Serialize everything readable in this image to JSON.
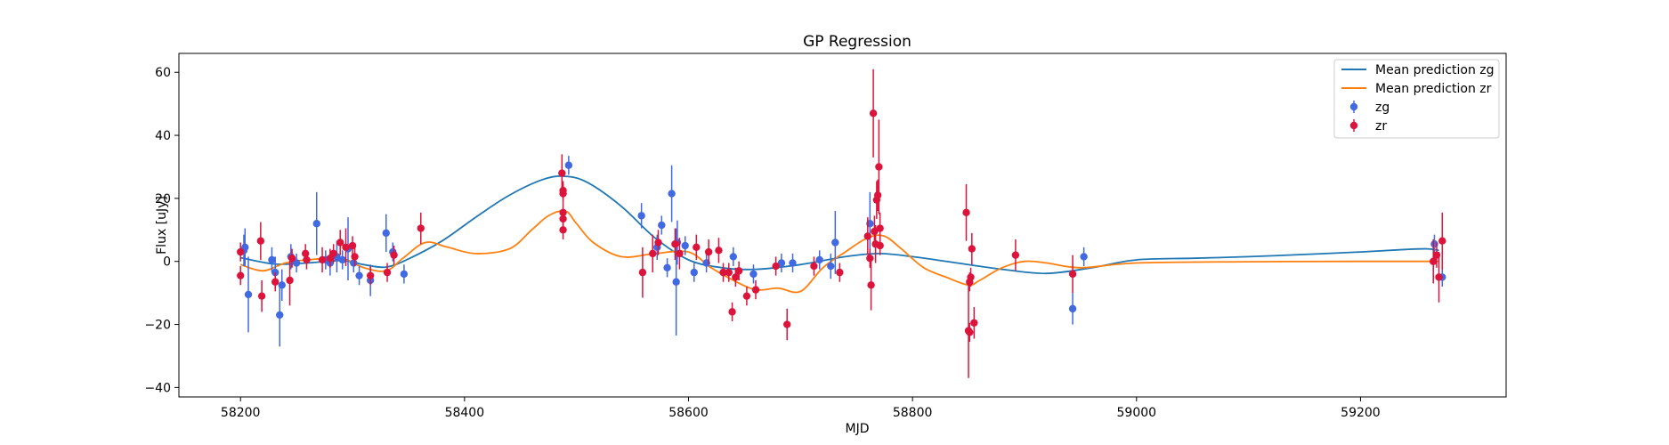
{
  "chart_data": {
    "type": "scatter",
    "title": "GP Regression",
    "xlabel": "MJD",
    "ylabel": "Flux [uJy]",
    "xlim": [
      58145,
      59330
    ],
    "ylim": [
      -43,
      66
    ],
    "xticks": [
      58200,
      58400,
      58600,
      58800,
      59000,
      59200
    ],
    "yticks": [
      -40,
      -20,
      0,
      20,
      40,
      60
    ],
    "grid": false,
    "legend_position": "top-right",
    "legend": [
      "Mean prediction zg",
      "Mean prediction zr",
      "zg",
      "zr"
    ],
    "lines": [
      {
        "name": "Mean prediction zg",
        "color": "#1f77b4",
        "x": [
          58200,
          58230,
          58260,
          58290,
          58310,
          58330,
          58350,
          58380,
          58410,
          58440,
          58470,
          58490,
          58510,
          58540,
          58570,
          58600,
          58630,
          58660,
          58700,
          58740,
          58770,
          58800,
          58840,
          58880,
          58920,
          58960,
          59000,
          59050,
          59100,
          59150,
          59200,
          59240,
          59260,
          59270
        ],
        "y": [
          1.2,
          -0.8,
          -0.5,
          0.3,
          -1.0,
          -1.8,
          0.8,
          6.5,
          14.0,
          21.0,
          26.0,
          27.0,
          25.0,
          17.5,
          7.5,
          0.5,
          -2.0,
          -2.5,
          -1.0,
          1.5,
          2.5,
          1.5,
          -0.5,
          -2.5,
          -3.8,
          -2.0,
          0.5,
          1.0,
          1.5,
          2.2,
          3.0,
          3.8,
          4.0,
          3.5
        ]
      },
      {
        "name": "Mean prediction zr",
        "color": "#ff7f0e",
        "x": [
          58200,
          58220,
          58240,
          58260,
          58290,
          58310,
          58330,
          58345,
          58365,
          58385,
          58410,
          58440,
          58460,
          58475,
          58490,
          58500,
          58515,
          58540,
          58570,
          58600,
          58620,
          58640,
          58660,
          58680,
          58700,
          58720,
          58740,
          58760,
          58775,
          58790,
          58810,
          58830,
          58850,
          58860,
          58880,
          58900,
          58920,
          58950,
          59000,
          59100,
          59200,
          59270
        ],
        "y": [
          -1.0,
          -3.0,
          -0.5,
          0.5,
          1.0,
          -2.0,
          -3.0,
          1.0,
          6.0,
          4.5,
          2.5,
          4.0,
          10.0,
          14.5,
          16.0,
          12.0,
          6.0,
          1.5,
          2.5,
          3.0,
          -2.0,
          -6.0,
          -9.0,
          -8.5,
          -9.5,
          -2.0,
          3.0,
          7.5,
          8.0,
          4.0,
          -2.0,
          -5.0,
          -7.5,
          -6.0,
          -2.0,
          0.0,
          -0.5,
          -2.0,
          -0.5,
          -0.1,
          0.0,
          0.0
        ]
      }
    ],
    "series": [
      {
        "name": "zg",
        "color": "#4169e1",
        "points": [
          {
            "x": 58203,
            "y": 3.5,
            "err": 5
          },
          {
            "x": 58204,
            "y": 4.5,
            "err": 6
          },
          {
            "x": 58207,
            "y": -10.5,
            "err": 12
          },
          {
            "x": 58228,
            "y": 0.5,
            "err": 4
          },
          {
            "x": 58231,
            "y": -3.5,
            "err": 5
          },
          {
            "x": 58235,
            "y": -17,
            "err": 10
          },
          {
            "x": 58237,
            "y": -7.5,
            "err": 5
          },
          {
            "x": 58245,
            "y": 1.5,
            "err": 4
          },
          {
            "x": 58250,
            "y": -0.5,
            "err": 3
          },
          {
            "x": 58268,
            "y": 12,
            "err": 10
          },
          {
            "x": 58276,
            "y": 0.5,
            "err": 3
          },
          {
            "x": 58280,
            "y": -0.5,
            "err": 4
          },
          {
            "x": 58286,
            "y": 1.5,
            "err": 5
          },
          {
            "x": 58291,
            "y": 0.5,
            "err": 3
          },
          {
            "x": 58296,
            "y": 4,
            "err": 10
          },
          {
            "x": 58301,
            "y": -0.5,
            "err": 3
          },
          {
            "x": 58306,
            "y": -4.5,
            "err": 3
          },
          {
            "x": 58316,
            "y": -6,
            "err": 5
          },
          {
            "x": 58330,
            "y": 9,
            "err": 6
          },
          {
            "x": 58336,
            "y": 3,
            "err": 3
          },
          {
            "x": 58346,
            "y": -4,
            "err": 3
          },
          {
            "x": 58493,
            "y": 30.5,
            "err": 3
          },
          {
            "x": 58558,
            "y": 14.5,
            "err": 4
          },
          {
            "x": 58572,
            "y": 4.5,
            "err": 4
          },
          {
            "x": 58576,
            "y": 11.5,
            "err": 3
          },
          {
            "x": 58581,
            "y": -2,
            "err": 3
          },
          {
            "x": 58585,
            "y": 21.5,
            "err": 9
          },
          {
            "x": 58589,
            "y": -6.5,
            "err": 17
          },
          {
            "x": 58590,
            "y": 6,
            "err": 7
          },
          {
            "x": 58597,
            "y": 5,
            "err": 3
          },
          {
            "x": 58605,
            "y": -3.5,
            "err": 3
          },
          {
            "x": 58616,
            "y": -0.5,
            "err": 3
          },
          {
            "x": 58640,
            "y": 1.5,
            "err": 3
          },
          {
            "x": 58658,
            "y": -4,
            "err": 3
          },
          {
            "x": 58683,
            "y": -0.5,
            "err": 3
          },
          {
            "x": 58693,
            "y": -0.5,
            "err": 3
          },
          {
            "x": 58717,
            "y": 0.5,
            "err": 3
          },
          {
            "x": 58727,
            "y": -1.5,
            "err": 4
          },
          {
            "x": 58731,
            "y": 6,
            "err": 10
          },
          {
            "x": 58762,
            "y": 12,
            "err": 10
          },
          {
            "x": 58943,
            "y": -15,
            "err": 5
          },
          {
            "x": 58953,
            "y": 1.5,
            "err": 3
          },
          {
            "x": 59266,
            "y": 5.5,
            "err": 3
          },
          {
            "x": 59273,
            "y": -5,
            "err": 3
          }
        ]
      },
      {
        "name": "zr",
        "color": "#dc143c",
        "points": [
          {
            "x": 58200,
            "y": 3,
            "err": 3
          },
          {
            "x": 58200,
            "y": -4.5,
            "err": 3
          },
          {
            "x": 58218,
            "y": 6.5,
            "err": 6
          },
          {
            "x": 58219,
            "y": -11,
            "err": 5
          },
          {
            "x": 58231,
            "y": -6.5,
            "err": 3
          },
          {
            "x": 58244,
            "y": -6,
            "err": 8
          },
          {
            "x": 58246,
            "y": 1,
            "err": 3
          },
          {
            "x": 58258,
            "y": 2.5,
            "err": 3
          },
          {
            "x": 58259,
            "y": 0.5,
            "err": 3
          },
          {
            "x": 58273,
            "y": 0.5,
            "err": 4
          },
          {
            "x": 58280,
            "y": 1,
            "err": 3
          },
          {
            "x": 58283,
            "y": 2.5,
            "err": 3
          },
          {
            "x": 58289,
            "y": 6,
            "err": 4
          },
          {
            "x": 58294,
            "y": 4.5,
            "err": 6
          },
          {
            "x": 58300,
            "y": 5,
            "err": 3
          },
          {
            "x": 58302,
            "y": 1.5,
            "err": 3
          },
          {
            "x": 58316,
            "y": -4.5,
            "err": 3
          },
          {
            "x": 58331,
            "y": -3.5,
            "err": 3
          },
          {
            "x": 58337,
            "y": 2,
            "err": 3
          },
          {
            "x": 58361,
            "y": 10.5,
            "err": 5
          },
          {
            "x": 58487,
            "y": 28,
            "err": 6
          },
          {
            "x": 58488,
            "y": 22.5,
            "err": 3
          },
          {
            "x": 58488,
            "y": 21.5,
            "err": 3
          },
          {
            "x": 58488,
            "y": 15.5,
            "err": 3
          },
          {
            "x": 58488,
            "y": 13.5,
            "err": 3
          },
          {
            "x": 58488,
            "y": 10,
            "err": 3
          },
          {
            "x": 58559,
            "y": -3.5,
            "err": 8
          },
          {
            "x": 58568,
            "y": 2.5,
            "err": 6
          },
          {
            "x": 58573,
            "y": 6,
            "err": 4
          },
          {
            "x": 58588,
            "y": 5.5,
            "err": 5
          },
          {
            "x": 58592,
            "y": 2.5,
            "err": 5
          },
          {
            "x": 58607,
            "y": 4.5,
            "err": 4
          },
          {
            "x": 58618,
            "y": 3,
            "err": 4
          },
          {
            "x": 58627,
            "y": 3.5,
            "err": 4
          },
          {
            "x": 58631,
            "y": -3.5,
            "err": 3
          },
          {
            "x": 58636,
            "y": -3.5,
            "err": 3
          },
          {
            "x": 58639,
            "y": -16,
            "err": 3
          },
          {
            "x": 58642,
            "y": -5,
            "err": 3
          },
          {
            "x": 58645,
            "y": -3,
            "err": 3
          },
          {
            "x": 58652,
            "y": -11,
            "err": 3
          },
          {
            "x": 58660,
            "y": -9,
            "err": 3
          },
          {
            "x": 58678,
            "y": -1.5,
            "err": 3
          },
          {
            "x": 58688,
            "y": -20,
            "err": 5
          },
          {
            "x": 58712,
            "y": -1.5,
            "err": 3
          },
          {
            "x": 58735,
            "y": -3.5,
            "err": 3
          },
          {
            "x": 58760,
            "y": 8,
            "err": 6
          },
          {
            "x": 58762,
            "y": 1,
            "err": 3
          },
          {
            "x": 58763,
            "y": -7.5,
            "err": 8
          },
          {
            "x": 58765,
            "y": 47,
            "err": 14
          },
          {
            "x": 58766,
            "y": 9.5,
            "err": 5
          },
          {
            "x": 58767,
            "y": 5.5,
            "err": 6
          },
          {
            "x": 58768,
            "y": 19.5,
            "err": 6
          },
          {
            "x": 58769,
            "y": 21,
            "err": 5
          },
          {
            "x": 58770,
            "y": 30,
            "err": 15
          },
          {
            "x": 58771,
            "y": 10.5,
            "err": 5
          },
          {
            "x": 58771,
            "y": 5,
            "err": 3
          },
          {
            "x": 58848,
            "y": 15.5,
            "err": 9
          },
          {
            "x": 58850,
            "y": -22,
            "err": 15
          },
          {
            "x": 58851,
            "y": -22.5,
            "err": 3
          },
          {
            "x": 58851,
            "y": -6.5,
            "err": 3
          },
          {
            "x": 58852,
            "y": -5,
            "err": 3
          },
          {
            "x": 58853,
            "y": 4,
            "err": 5
          },
          {
            "x": 58855,
            "y": -19.5,
            "err": 5
          },
          {
            "x": 58892,
            "y": 2,
            "err": 5
          },
          {
            "x": 58943,
            "y": -4,
            "err": 6
          },
          {
            "x": 59265,
            "y": 0,
            "err": 7
          },
          {
            "x": 59268,
            "y": 2,
            "err": 4
          },
          {
            "x": 59270,
            "y": -5,
            "err": 8
          },
          {
            "x": 59273,
            "y": 6.5,
            "err": 9
          }
        ]
      }
    ]
  }
}
